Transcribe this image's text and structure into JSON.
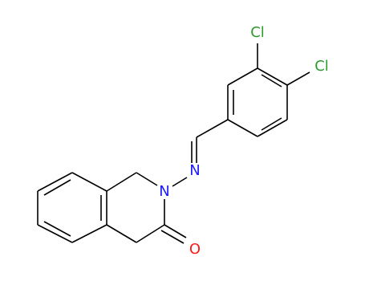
{
  "atoms": [
    {
      "label": "Cl"
    },
    {
      "label": "Cl"
    },
    {
      "label": "N"
    },
    {
      "label": "N"
    },
    {
      "label": "O"
    }
  ]
}
